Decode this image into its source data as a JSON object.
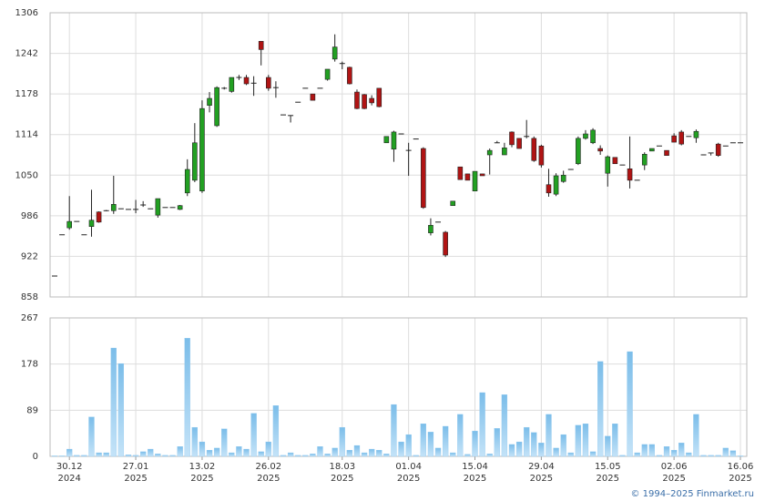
{
  "chart_data": {
    "type": "candlestick",
    "categories": [
      null,
      null,
      "30.12\n2024",
      null,
      null,
      null,
      null,
      null,
      null,
      null,
      null,
      "27.01\n2025",
      null,
      null,
      null,
      null,
      null,
      null,
      null,
      null,
      "13.02\n2025",
      null,
      null,
      null,
      null,
      null,
      null,
      null,
      null,
      "26.02\n2025",
      null,
      null,
      null,
      null,
      null,
      null,
      null,
      null,
      null,
      "18.03\n2025",
      null,
      null,
      null,
      null,
      null,
      null,
      null,
      null,
      "01.04\n2025",
      null,
      null,
      null,
      null,
      null,
      null,
      null,
      null,
      "15.04\n2025",
      null,
      null,
      null,
      null,
      null,
      null,
      null,
      null,
      "29.04\n2025",
      null,
      null,
      null,
      null,
      null,
      null,
      null,
      null,
      "15.05\n2025",
      null,
      null,
      null,
      null,
      null,
      null,
      null,
      null,
      "02.06\n2025",
      null,
      null,
      null,
      null,
      null,
      null,
      null,
      null,
      "16.06\n2025"
    ],
    "open": [
      891,
      956,
      967,
      977,
      956,
      969,
      992,
      994,
      994,
      997,
      996,
      996,
      1003,
      997,
      987,
      999,
      999,
      996,
      1022,
      1042,
      1025,
      1160,
      1128,
      1187,
      1182,
      1204,
      1204,
      1195,
      1261,
      1204,
      1188,
      1145,
      1144,
      1165,
      1187,
      1178,
      1187,
      1201,
      1233,
      1226,
      1220,
      1181,
      1177,
      1171,
      1187,
      1101,
      1091,
      1115,
      1089,
      1107,
      1092,
      959,
      976,
      960,
      1002,
      1063,
      1052,
      1025,
      1052,
      1082,
      1101,
      1082,
      1118,
      1108,
      1111,
      1108,
      1096,
      1035,
      1020,
      1040,
      1059,
      1068,
      1108,
      1101,
      1092,
      1053,
      1078,
      1066,
      1060,
      1042,
      1066,
      1088,
      1096,
      1089,
      1112,
      1118,
      1111,
      1109,
      1082,
      1085,
      1099,
      1096,
      1101,
      1101
    ],
    "high": [
      891,
      956,
      1017,
      977,
      956,
      1027,
      993,
      995,
      1049,
      997,
      996,
      1011,
      1009,
      997,
      1013,
      999,
      999,
      1003,
      1075,
      1132,
      1168,
      1181,
      1190,
      1189,
      1204,
      1208,
      1208,
      1206,
      1261,
      1208,
      1198,
      1145,
      1144,
      1165,
      1187,
      1178,
      1187,
      1217,
      1272,
      1229,
      1221,
      1185,
      1178,
      1176,
      1187,
      1111,
      1120,
      1115,
      1101,
      1107,
      1094,
      982,
      976,
      962,
      1009,
      1063,
      1052,
      1056,
      1052,
      1092,
      1104,
      1101,
      1119,
      1108,
      1137,
      1111,
      1098,
      1060,
      1053,
      1057,
      1059,
      1111,
      1121,
      1124,
      1097,
      1081,
      1078,
      1066,
      1111,
      1042,
      1086,
      1092,
      1096,
      1089,
      1116,
      1121,
      1111,
      1122,
      1082,
      1085,
      1101,
      1096,
      1101,
      1101
    ],
    "low": [
      891,
      956,
      964,
      977,
      956,
      953,
      975,
      993,
      989,
      997,
      996,
      990,
      1000,
      997,
      983,
      999,
      999,
      995,
      1017,
      1039,
      1022,
      1149,
      1126,
      1185,
      1180,
      1200,
      1192,
      1175,
      1223,
      1183,
      1172,
      1145,
      1133,
      1165,
      1187,
      1168,
      1187,
      1199,
      1229,
      1217,
      1193,
      1154,
      1154,
      1160,
      1157,
      1101,
      1071,
      1115,
      1049,
      1107,
      997,
      955,
      976,
      921,
      1002,
      1043,
      1042,
      1025,
      1049,
      1051,
      1101,
      1082,
      1094,
      1092,
      1108,
      1071,
      1062,
      1016,
      1017,
      1038,
      1059,
      1066,
      1106,
      1099,
      1082,
      1032,
      1068,
      1066,
      1029,
      1042,
      1058,
      1088,
      1096,
      1081,
      1102,
      1097,
      1111,
      1101,
      1082,
      1081,
      1079,
      1096,
      1101,
      1101
    ],
    "close": [
      891,
      956,
      977,
      977,
      956,
      979,
      976,
      994,
      1004,
      997,
      996,
      996,
      1003,
      997,
      1013,
      999,
      999,
      1002,
      1059,
      1101,
      1155,
      1171,
      1188,
      1187,
      1204,
      1204,
      1194,
      1195,
      1248,
      1187,
      1188,
      1145,
      1144,
      1165,
      1187,
      1168,
      1187,
      1217,
      1252,
      1226,
      1194,
      1155,
      1155,
      1164,
      1158,
      1111,
      1118,
      1115,
      1089,
      1107,
      999,
      971,
      976,
      924,
      1009,
      1043,
      1042,
      1056,
      1049,
      1089,
      1101,
      1093,
      1098,
      1092,
      1111,
      1073,
      1066,
      1022,
      1049,
      1050,
      1059,
      1108,
      1115,
      1121,
      1088,
      1079,
      1068,
      1066,
      1042,
      1042,
      1083,
      1092,
      1096,
      1081,
      1102,
      1099,
      1111,
      1119,
      1082,
      1085,
      1081,
      1096,
      1101,
      1101
    ],
    "up_color": "#22a022",
    "down_color": "#b01414",
    "ylim": [
      858,
      1306
    ],
    "yticks": [
      858,
      922,
      986,
      1050,
      1114,
      1178,
      1242,
      1306
    ],
    "grid": true,
    "volume": {
      "values": [
        1,
        1,
        14,
        2,
        2,
        76,
        7,
        7,
        209,
        179,
        3,
        2,
        9,
        14,
        5,
        2,
        2,
        19,
        228,
        56,
        28,
        12,
        16,
        53,
        7,
        19,
        14,
        83,
        9,
        28,
        98,
        2,
        7,
        2,
        2,
        5,
        19,
        5,
        16,
        56,
        12,
        21,
        7,
        14,
        12,
        5,
        100,
        28,
        42,
        2,
        63,
        47,
        16,
        58,
        7,
        81,
        4,
        49,
        123,
        5,
        54,
        119,
        23,
        28,
        56,
        46,
        26,
        81,
        16,
        42,
        7,
        60,
        63,
        9,
        183,
        39,
        63,
        2,
        202,
        7,
        23,
        23,
        2,
        19,
        12,
        26,
        7,
        81,
        2,
        2,
        2,
        16,
        11,
        1
      ],
      "color": "#8fc9f0",
      "ylim": [
        0,
        267
      ],
      "yticks": [
        0,
        89,
        178,
        267
      ]
    }
  },
  "footer": "© 1994–2025 Finmarket.ru"
}
